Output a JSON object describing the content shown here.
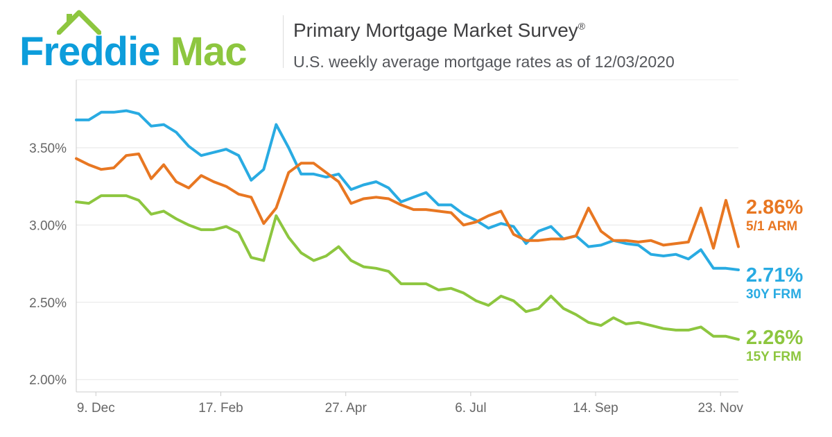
{
  "logo": {
    "brand_first": "Freddie",
    "brand_second": "Mac",
    "blue": "#0d9ddb",
    "green": "#8dc63f"
  },
  "header": {
    "title": "Primary Mortgage Market Survey",
    "registered_mark": "®",
    "subtitle": "U.S. weekly average mortgage rates as of 12/03/2020"
  },
  "chart_data": {
    "type": "line",
    "frequency": "weekly",
    "x_axis": {
      "ticks": [
        {
          "label": "9. Dec",
          "week": 1.57
        },
        {
          "label": "17. Feb",
          "week": 11.57
        },
        {
          "label": "27. Apr",
          "week": 21.57
        },
        {
          "label": "6. Jul",
          "week": 31.57
        },
        {
          "label": "14. Sep",
          "week": 41.57
        },
        {
          "label": "23. Nov",
          "week": 51.57
        }
      ]
    },
    "y_axis": {
      "min": 1.92,
      "max": 3.94,
      "ticks": [
        {
          "label": "3.50%",
          "value": 3.5
        },
        {
          "label": "3.00%",
          "value": 3.0
        },
        {
          "label": "2.50%",
          "value": 2.5
        },
        {
          "label": "2.00%",
          "value": 2.0
        }
      ]
    },
    "grid": true,
    "legend_position": "right",
    "series": [
      {
        "id": "30y-frm",
        "name": "30Y FRM",
        "display_value": "2.71%",
        "color": "#29abe2",
        "values": [
          3.68,
          3.68,
          3.73,
          3.73,
          3.74,
          3.72,
          3.64,
          3.65,
          3.6,
          3.51,
          3.45,
          3.47,
          3.49,
          3.45,
          3.29,
          3.36,
          3.65,
          3.5,
          3.33,
          3.33,
          3.31,
          3.33,
          3.23,
          3.26,
          3.28,
          3.24,
          3.15,
          3.18,
          3.21,
          3.13,
          3.13,
          3.07,
          3.03,
          2.98,
          3.01,
          2.99,
          2.88,
          2.96,
          2.99,
          2.91,
          2.93,
          2.86,
          2.87,
          2.9,
          2.88,
          2.87,
          2.81,
          2.8,
          2.81,
          2.78,
          2.84,
          2.72,
          2.72,
          2.71
        ]
      },
      {
        "id": "15y-frm",
        "name": "15Y FRM",
        "display_value": "2.26%",
        "color": "#8dc63f",
        "values": [
          3.15,
          3.14,
          3.19,
          3.19,
          3.19,
          3.16,
          3.07,
          3.09,
          3.04,
          3.0,
          2.97,
          2.97,
          2.99,
          2.95,
          2.79,
          2.77,
          3.06,
          2.92,
          2.82,
          2.77,
          2.8,
          2.86,
          2.77,
          2.73,
          2.72,
          2.7,
          2.62,
          2.62,
          2.62,
          2.58,
          2.59,
          2.56,
          2.51,
          2.48,
          2.54,
          2.51,
          2.44,
          2.46,
          2.54,
          2.46,
          2.42,
          2.37,
          2.35,
          2.4,
          2.36,
          2.37,
          2.35,
          2.33,
          2.32,
          2.32,
          2.34,
          2.28,
          2.28,
          2.26
        ]
      },
      {
        "id": "5-1-arm",
        "name": "5/1 ARM",
        "display_value": "2.86%",
        "color": "#e87722",
        "values": [
          3.43,
          3.39,
          3.36,
          3.37,
          3.45,
          3.46,
          3.3,
          3.39,
          3.28,
          3.24,
          3.32,
          3.28,
          3.25,
          3.2,
          3.18,
          3.01,
          3.11,
          3.34,
          3.4,
          3.4,
          3.34,
          3.28,
          3.14,
          3.17,
          3.18,
          3.17,
          3.13,
          3.1,
          3.1,
          3.09,
          3.08,
          3.0,
          3.02,
          3.06,
          3.09,
          2.94,
          2.9,
          2.9,
          2.91,
          2.91,
          2.93,
          3.11,
          2.96,
          2.9,
          2.9,
          2.89,
          2.9,
          2.87,
          2.88,
          2.89,
          3.11,
          2.85,
          3.16,
          2.86
        ]
      }
    ]
  }
}
